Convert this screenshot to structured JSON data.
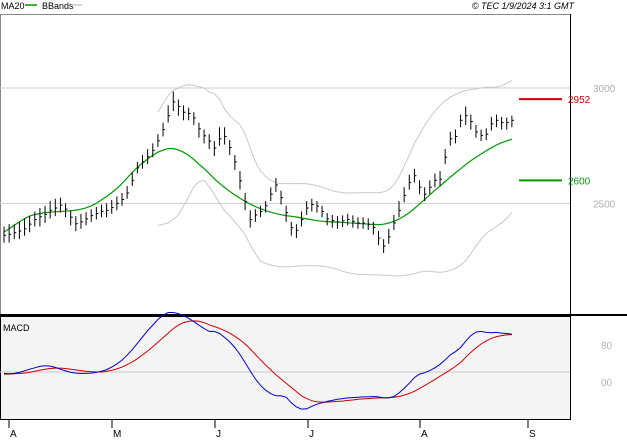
{
  "header": {
    "ma_label": "MA20",
    "bbands_label": "BBands",
    "source": "© TEC 1/9/2024 3:1 GMT"
  },
  "colors": {
    "ma20": "#009900",
    "bbands": "#c8c8c8",
    "price": "#000000",
    "resistance": "#cc0000",
    "support": "#009900",
    "macd": "#0000cc",
    "signal": "#cc0000",
    "panel_bg": "#f4f4f4"
  },
  "chart_data": [
    {
      "type": "line",
      "subtype": "ohlc-bars with moving average and bollinger bands",
      "x_ticks": [
        "A",
        "M",
        "J",
        "J",
        "A",
        "S"
      ],
      "y_ticks": [
        2500,
        3000
      ],
      "ylim": [
        2070,
        3215
      ],
      "levels": [
        {
          "label": "2952",
          "value": 2952,
          "color": "#cc0000"
        },
        {
          "label": "2600",
          "value": 2600,
          "color": "#009900"
        }
      ],
      "price_bars": [
        [
          2362,
          2330,
          2400
        ],
        [
          2366,
          2330,
          2410
        ],
        [
          2373,
          2345,
          2410
        ],
        [
          2380,
          2345,
          2420
        ],
        [
          2390,
          2360,
          2435
        ],
        [
          2410,
          2375,
          2445
        ],
        [
          2430,
          2400,
          2465
        ],
        [
          2442,
          2400,
          2480
        ],
        [
          2452,
          2415,
          2490
        ],
        [
          2470,
          2435,
          2510
        ],
        [
          2480,
          2445,
          2520
        ],
        [
          2492,
          2460,
          2525
        ],
        [
          2475,
          2440,
          2500
        ],
        [
          2440,
          2405,
          2470
        ],
        [
          2412,
          2380,
          2445
        ],
        [
          2420,
          2390,
          2455
        ],
        [
          2433,
          2405,
          2462
        ],
        [
          2447,
          2420,
          2475
        ],
        [
          2456,
          2430,
          2485
        ],
        [
          2465,
          2440,
          2495
        ],
        [
          2470,
          2440,
          2500
        ],
        [
          2482,
          2455,
          2515
        ],
        [
          2500,
          2470,
          2530
        ],
        [
          2517,
          2490,
          2545
        ],
        [
          2545,
          2520,
          2575
        ],
        [
          2600,
          2575,
          2635
        ],
        [
          2654,
          2630,
          2680
        ],
        [
          2680,
          2650,
          2710
        ],
        [
          2702,
          2670,
          2735
        ],
        [
          2730,
          2700,
          2760
        ],
        [
          2771,
          2745,
          2800
        ],
        [
          2820,
          2790,
          2850
        ],
        [
          2880,
          2850,
          2925
        ],
        [
          2940,
          2900,
          2985
        ],
        [
          2920,
          2880,
          2950
        ],
        [
          2895,
          2860,
          2925
        ],
        [
          2890,
          2860,
          2915
        ],
        [
          2870,
          2840,
          2895
        ],
        [
          2823,
          2785,
          2850
        ],
        [
          2793,
          2760,
          2820
        ],
        [
          2770,
          2735,
          2800
        ],
        [
          2740,
          2705,
          2770
        ],
        [
          2780,
          2750,
          2830
        ],
        [
          2790,
          2755,
          2830
        ],
        [
          2742,
          2710,
          2775
        ],
        [
          2680,
          2645,
          2710
        ],
        [
          2598,
          2560,
          2640
        ],
        [
          2508,
          2470,
          2545
        ],
        [
          2430,
          2395,
          2470
        ],
        [
          2450,
          2420,
          2475
        ],
        [
          2465,
          2440,
          2490
        ],
        [
          2490,
          2460,
          2510
        ],
        [
          2540,
          2510,
          2570
        ],
        [
          2580,
          2550,
          2610
        ],
        [
          2525,
          2495,
          2555
        ],
        [
          2460,
          2420,
          2490
        ],
        [
          2395,
          2360,
          2420
        ],
        [
          2383,
          2350,
          2410
        ],
        [
          2430,
          2400,
          2465
        ],
        [
          2480,
          2450,
          2510
        ],
        [
          2495,
          2465,
          2520
        ],
        [
          2488,
          2460,
          2510
        ],
        [
          2465,
          2440,
          2490
        ],
        [
          2433,
          2405,
          2458
        ],
        [
          2425,
          2395,
          2450
        ],
        [
          2420,
          2390,
          2445
        ],
        [
          2425,
          2398,
          2448
        ],
        [
          2430,
          2405,
          2455
        ],
        [
          2422,
          2395,
          2448
        ],
        [
          2415,
          2390,
          2440
        ],
        [
          2415,
          2390,
          2440
        ],
        [
          2410,
          2385,
          2435
        ],
        [
          2395,
          2365,
          2420
        ],
        [
          2350,
          2320,
          2380
        ],
        [
          2315,
          2285,
          2345
        ],
        [
          2355,
          2325,
          2390
        ],
        [
          2415,
          2385,
          2450
        ],
        [
          2470,
          2440,
          2510
        ],
        [
          2535,
          2505,
          2570
        ],
        [
          2590,
          2560,
          2625
        ],
        [
          2620,
          2590,
          2650
        ],
        [
          2570,
          2540,
          2600
        ],
        [
          2540,
          2510,
          2570
        ],
        [
          2570,
          2540,
          2600
        ],
        [
          2600,
          2570,
          2630
        ],
        [
          2605,
          2575,
          2640
        ],
        [
          2700,
          2670,
          2735
        ],
        [
          2780,
          2750,
          2810
        ],
        [
          2790,
          2760,
          2820
        ],
        [
          2860,
          2830,
          2885
        ],
        [
          2880,
          2840,
          2920
        ],
        [
          2855,
          2820,
          2885
        ],
        [
          2810,
          2785,
          2840
        ],
        [
          2795,
          2770,
          2820
        ],
        [
          2800,
          2775,
          2825
        ],
        [
          2845,
          2815,
          2875
        ],
        [
          2860,
          2830,
          2885
        ],
        [
          2850,
          2820,
          2875
        ],
        [
          2850,
          2820,
          2872
        ],
        [
          2860,
          2830,
          2880
        ]
      ],
      "ma20": [
        2376,
        2390,
        2405,
        2420,
        2434,
        2445,
        2452,
        2456,
        2460,
        2462,
        2464,
        2465,
        2466,
        2468,
        2471,
        2475,
        2481,
        2489,
        2500,
        2515,
        2530,
        2547,
        2565,
        2586,
        2610,
        2634,
        2656,
        2675,
        2692,
        2709,
        2722,
        2731,
        2737,
        2738,
        2732,
        2722,
        2708,
        2690,
        2670,
        2651,
        2630,
        2607,
        2587,
        2569,
        2552,
        2537,
        2522,
        2509,
        2497,
        2486,
        2477,
        2469,
        2462,
        2456,
        2451,
        2447,
        2444,
        2441,
        2437,
        2433,
        2429,
        2425,
        2423,
        2421,
        2420,
        2419,
        2418,
        2416,
        2415,
        2413,
        2412,
        2410,
        2409,
        2408,
        2410,
        2415,
        2422,
        2432,
        2445,
        2460,
        2478,
        2497,
        2517,
        2537,
        2557,
        2576,
        2595,
        2614,
        2632,
        2650,
        2668,
        2685,
        2700,
        2714,
        2728,
        2741,
        2753,
        2763,
        2771,
        2778
      ],
      "bb_upper": [
        null,
        null,
        null,
        null,
        null,
        null,
        null,
        null,
        null,
        null,
        null,
        null,
        null,
        null,
        null,
        null,
        null,
        null,
        null,
        null,
        null,
        null,
        null,
        null,
        null,
        null,
        null,
        null,
        null,
        null,
        2895,
        2932,
        2968,
        2990,
        2999,
        3010,
        3014,
        3011,
        3006,
        2999,
        2982,
        2975,
        2952,
        2910,
        2880,
        2860,
        2840,
        2800,
        2740,
        2680,
        2640,
        2617,
        2600,
        2590,
        2586,
        2586,
        2586,
        2586,
        2586,
        2585,
        2582,
        2577,
        2571,
        2563,
        2555,
        2550,
        2547,
        2545,
        2545,
        2546,
        2546,
        2546,
        2546,
        2546,
        2550,
        2560,
        2580,
        2615,
        2660,
        2710,
        2760,
        2800,
        2838,
        2870,
        2900,
        2925,
        2945,
        2960,
        2972,
        2982,
        2989,
        2992,
        2996,
        3000,
        3003,
        3004,
        3004,
        3010,
        3020,
        3032
      ],
      "bb_lower": [
        null,
        null,
        null,
        null,
        null,
        null,
        null,
        null,
        null,
        null,
        null,
        null,
        null,
        null,
        null,
        null,
        null,
        null,
        null,
        null,
        null,
        null,
        null,
        null,
        null,
        null,
        null,
        null,
        null,
        null,
        2405,
        2410,
        2415,
        2431,
        2450,
        2490,
        2527,
        2573,
        2593,
        2600,
        2573,
        2540,
        2502,
        2468,
        2446,
        2420,
        2394,
        2365,
        2320,
        2282,
        2250,
        2240,
        2233,
        2228,
        2226,
        2225,
        2226,
        2228,
        2230,
        2230,
        2230,
        2230,
        2228,
        2225,
        2220,
        2214,
        2206,
        2200,
        2195,
        2193,
        2192,
        2191,
        2190,
        2190,
        2189,
        2188,
        2186,
        2186,
        2188,
        2191,
        2196,
        2202,
        2206,
        2206,
        2203,
        2201,
        2204,
        2210,
        2220,
        2232,
        2252,
        2283,
        2315,
        2345,
        2371,
        2386,
        2400,
        2416,
        2434,
        2460
      ],
      "series": [
        {
          "name": "MA20",
          "color": "#009900"
        },
        {
          "name": "BBands",
          "color": "#c8c8c8"
        }
      ]
    },
    {
      "type": "line",
      "title": "MACD",
      "ylim": [
        -120,
        180
      ],
      "y_ticks": [
        "80",
        "00"
      ],
      "series": [
        {
          "color": "#0000cc",
          "values": [
            -4,
            -5,
            -4,
            -1,
            3,
            8,
            12,
            16,
            18,
            17,
            13,
            8,
            3,
            -1,
            -3,
            -4,
            -4,
            -3,
            -1,
            2,
            7,
            14,
            23,
            34,
            48,
            64,
            82,
            100,
            118,
            134,
            150,
            162,
            170,
            170,
            167,
            161,
            153,
            144,
            134,
            124,
            116,
            116,
            110,
            99,
            86,
            70,
            50,
            27,
            3,
            -20,
            -38,
            -52,
            -62,
            -68,
            -68,
            -72,
            -88,
            -100,
            -106,
            -105,
            -98,
            -92,
            -88,
            -84,
            -81,
            -78,
            -76,
            -74,
            -73,
            -72,
            -71,
            -71,
            -70,
            -71,
            -74,
            -74,
            -70,
            -60,
            -47,
            -32,
            -16,
            -6,
            -2,
            4,
            12,
            22,
            35,
            49,
            58,
            70,
            88,
            104,
            114,
            116,
            113,
            112,
            113,
            111,
            110,
            108
          ]
        },
        {
          "color": "#cc0000",
          "values": [
            -6,
            -6,
            -5,
            -4,
            -3,
            -1,
            2,
            5,
            8,
            10,
            11,
            11,
            10,
            8,
            6,
            4,
            2,
            1,
            0,
            0,
            2,
            5,
            9,
            14,
            21,
            29,
            38,
            49,
            60,
            72,
            85,
            98,
            111,
            124,
            134,
            141,
            145,
            146,
            145,
            141,
            135,
            130,
            125,
            118,
            111,
            102,
            92,
            80,
            66,
            50,
            35,
            20,
            6,
            -8,
            -20,
            -32,
            -44,
            -56,
            -68,
            -76,
            -82,
            -85,
            -86,
            -86,
            -85,
            -84,
            -83,
            -81,
            -80,
            -78,
            -77,
            -76,
            -75,
            -74,
            -74,
            -73,
            -72,
            -70,
            -66,
            -61,
            -55,
            -47,
            -39,
            -30,
            -21,
            -12,
            -3,
            6,
            16,
            27,
            42,
            56,
            69,
            80,
            89,
            96,
            101,
            104,
            106,
            107
          ]
        }
      ]
    }
  ]
}
